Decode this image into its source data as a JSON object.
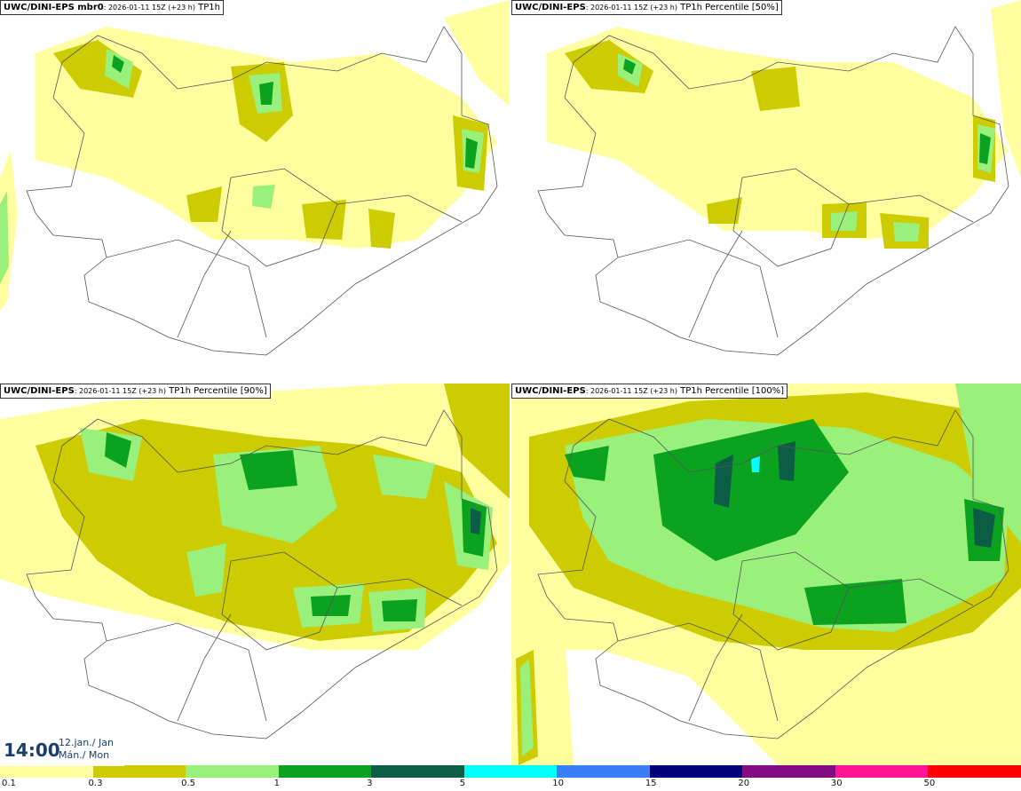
{
  "panels": [
    {
      "model": "UWC/DINI-EPS mbr0",
      "run": ": 2026-01-11 15Z (+23 h)",
      "field": " TP1h"
    },
    {
      "model": "UWC/DINI-EPS",
      "run": ": 2026-01-11 15Z (+23 h)",
      "field": " TP1h Percentile [50%]"
    },
    {
      "model": "UWC/DINI-EPS",
      "run": ": 2026-01-11 15Z (+23 h)",
      "field": " TP1h Percentile [90%]"
    },
    {
      "model": "UWC/DINI-EPS",
      "run": ": 2026-01-11 15Z (+23 h)",
      "field": " TP1h Percentile [100%]"
    }
  ],
  "time": {
    "clock": "14:00",
    "date_line1": "12.jan./ Jan",
    "date_line2": "Mán./ Mon"
  },
  "legend": {
    "labels": [
      "0.1",
      "0.3",
      "0.5",
      "1",
      "3",
      "5",
      "10",
      "15",
      "20",
      "30",
      "50"
    ],
    "colors": [
      "#ffffa0",
      "#cccc00",
      "#99f07a",
      "#0aa21e",
      "#0b5e45",
      "#00fffd",
      "#3a7ff5",
      "#000078",
      "#820a82",
      "#ff1493",
      "#ff0000"
    ]
  },
  "colors": {
    "coast": "#555555",
    "light": "#ffffa0",
    "mid": "#cccc00",
    "pale_green": "#99f07a",
    "green": "#0aa21e",
    "dark_green": "#0b5e45",
    "cyan": "#00fffd"
  }
}
